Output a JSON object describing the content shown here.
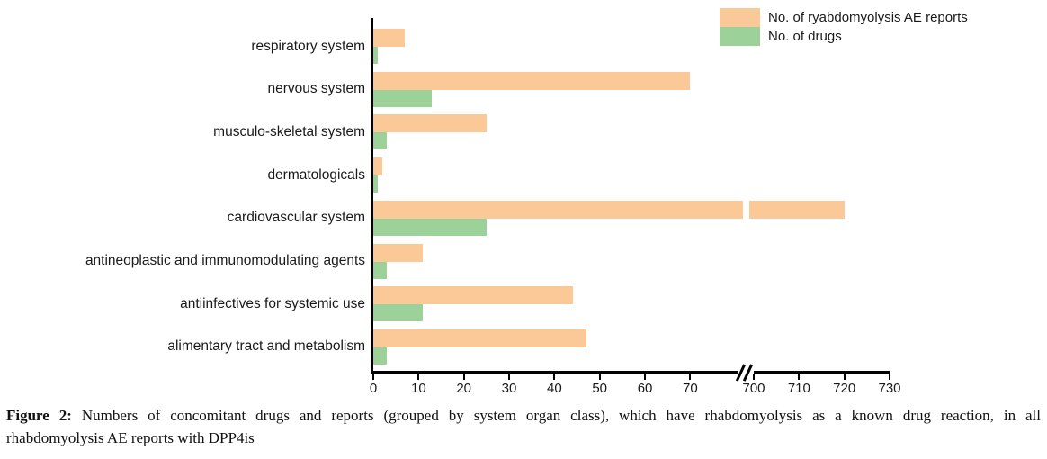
{
  "chart_data": {
    "type": "bar",
    "orientation": "horizontal",
    "title": "",
    "xlabel": "",
    "ylabel": "",
    "grid": false,
    "legend_position": "top-right",
    "categories": [
      "respiratory system",
      "nervous system",
      "musculo-skeletal system",
      "dermatologicals",
      "cardiovascular system",
      "antineoplastic and immunomodulating agents",
      "antiinfectives for systemic use",
      "alimentary tract and metabolism"
    ],
    "series": [
      {
        "name": "No. of ryabdomyolysis AE reports",
        "color": "#FBC998",
        "values": [
          7,
          70,
          25,
          2,
          720,
          11,
          44,
          47
        ]
      },
      {
        "name": "No. of drugs",
        "color": "#9CD19A",
        "values": [
          1,
          13,
          3,
          1,
          25,
          3,
          11,
          3
        ]
      }
    ],
    "x_axis": {
      "ticks": [
        0,
        10,
        20,
        30,
        40,
        50,
        60,
        70,
        700,
        710,
        720,
        730
      ],
      "has_axis_break": true,
      "break_between": [
        70,
        700
      ],
      "range_left_segment": [
        0,
        70
      ],
      "range_right_segment": [
        700,
        730
      ]
    }
  },
  "colors": {
    "axis": "#000000",
    "text": "#1a1a1a"
  },
  "caption": {
    "prefix": "Figure 2:",
    "line1_rest": "Numbers of concomitant drugs and reports (grouped by system organ class), which have rhabdomyolysis as a known drug reaction, in all",
    "line2": "rhabdomyolysis AE reports with DPP4is"
  }
}
